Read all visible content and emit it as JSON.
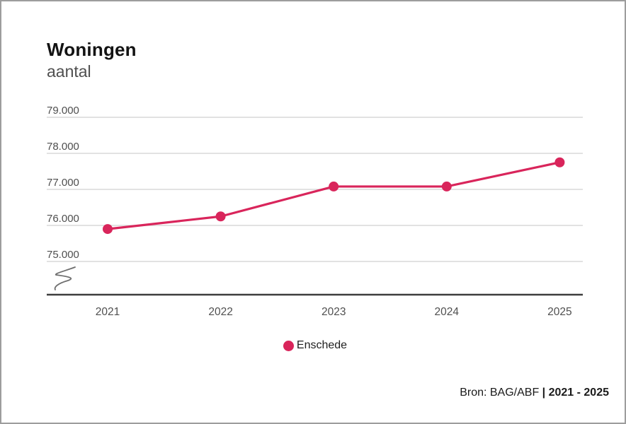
{
  "header": {
    "title": "Woningen",
    "subtitle": "aantal"
  },
  "legend": {
    "items": [
      {
        "label": "Enschede",
        "color": "#d9255b"
      }
    ]
  },
  "source": {
    "normal": "Bron: BAG/ABF ",
    "bold": "| 2021 - 2025"
  },
  "chart_data": {
    "type": "line",
    "title": "Woningen",
    "ylabel": "aantal",
    "x": [
      "2021",
      "2022",
      "2023",
      "2024",
      "2025"
    ],
    "series": [
      {
        "name": "Enschede",
        "color": "#d9255b",
        "values": [
          75900,
          76250,
          77080,
          77080,
          77750
        ]
      }
    ],
    "ylim": [
      75000,
      79000
    ],
    "yticks": [
      75000,
      76000,
      77000,
      78000,
      79000
    ],
    "ytick_labels": [
      "75.000",
      "76.000",
      "77.000",
      "78.000",
      "79.000"
    ],
    "grid": true,
    "axis_break": true,
    "legend_position": "bottom-center",
    "source": "Bron: BAG/ABF | 2021 - 2025"
  }
}
